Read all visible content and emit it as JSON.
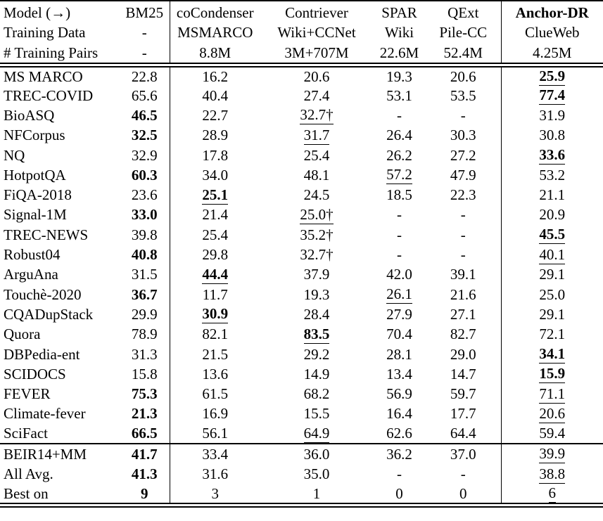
{
  "colors": {
    "text": "#000000",
    "background": "#ffffff",
    "rule": "#000000"
  },
  "table": {
    "header_rows": [
      {
        "label": "Model (→)",
        "cells": [
          {
            "v": "BM25"
          },
          {
            "v": "coCondenser"
          },
          {
            "v": "Contriever"
          },
          {
            "v": "SPAR"
          },
          {
            "v": "QExt"
          },
          {
            "v": "Anchor-DR",
            "b": true
          }
        ]
      },
      {
        "label": "Training Data",
        "cells": [
          {
            "v": "-"
          },
          {
            "v": "MSMARCO"
          },
          {
            "v": "Wiki+CCNet"
          },
          {
            "v": "Wiki"
          },
          {
            "v": "Pile-CC"
          },
          {
            "v": "ClueWeb"
          }
        ]
      },
      {
        "label": "# Training Pairs",
        "cells": [
          {
            "v": "-"
          },
          {
            "v": "8.8M"
          },
          {
            "v": "3M+707M"
          },
          {
            "v": "22.6M"
          },
          {
            "v": "52.4M"
          },
          {
            "v": "4.25M"
          }
        ]
      }
    ],
    "body_rows": [
      {
        "label": "MS MARCO",
        "cells": [
          {
            "v": "22.8"
          },
          {
            "v": "16.2"
          },
          {
            "v": "20.6"
          },
          {
            "v": "19.3"
          },
          {
            "v": "20.6"
          },
          {
            "v": "25.9",
            "b": true,
            "u": true
          }
        ]
      },
      {
        "label": "TREC-COVID",
        "cells": [
          {
            "v": "65.6"
          },
          {
            "v": "40.4"
          },
          {
            "v": "27.4"
          },
          {
            "v": "53.1"
          },
          {
            "v": "53.5"
          },
          {
            "v": "77.4",
            "b": true,
            "u": true
          }
        ]
      },
      {
        "label": "BioASQ",
        "cells": [
          {
            "v": "46.5",
            "b": true
          },
          {
            "v": "22.7"
          },
          {
            "v": "32.7†",
            "u": true
          },
          {
            "v": "-"
          },
          {
            "v": "-"
          },
          {
            "v": "31.9"
          }
        ]
      },
      {
        "label": "NFCorpus",
        "cells": [
          {
            "v": "32.5",
            "b": true
          },
          {
            "v": "28.9"
          },
          {
            "v": "31.7",
            "u": true
          },
          {
            "v": "26.4"
          },
          {
            "v": "30.3"
          },
          {
            "v": "30.8"
          }
        ]
      },
      {
        "label": "NQ",
        "cells": [
          {
            "v": "32.9"
          },
          {
            "v": "17.8"
          },
          {
            "v": "25.4"
          },
          {
            "v": "26.2"
          },
          {
            "v": "27.2"
          },
          {
            "v": "33.6",
            "b": true,
            "u": true
          }
        ]
      },
      {
        "label": "HotpotQA",
        "cells": [
          {
            "v": "60.3",
            "b": true
          },
          {
            "v": "34.0"
          },
          {
            "v": "48.1"
          },
          {
            "v": "57.2",
            "u": true
          },
          {
            "v": "47.9"
          },
          {
            "v": "53.2"
          }
        ]
      },
      {
        "label": "FiQA-2018",
        "cells": [
          {
            "v": "23.6"
          },
          {
            "v": "25.1",
            "b": true,
            "u": true
          },
          {
            "v": "24.5"
          },
          {
            "v": "18.5"
          },
          {
            "v": "22.3"
          },
          {
            "v": "21.1"
          }
        ]
      },
      {
        "label": "Signal-1M",
        "cells": [
          {
            "v": "33.0",
            "b": true
          },
          {
            "v": "21.4"
          },
          {
            "v": "25.0†",
            "u": true
          },
          {
            "v": "-"
          },
          {
            "v": "-"
          },
          {
            "v": "20.9"
          }
        ]
      },
      {
        "label": "TREC-NEWS",
        "cells": [
          {
            "v": "39.8"
          },
          {
            "v": "25.4"
          },
          {
            "v": "35.2†"
          },
          {
            "v": "-"
          },
          {
            "v": "-"
          },
          {
            "v": "45.5",
            "b": true,
            "u": true
          }
        ]
      },
      {
        "label": "Robust04",
        "cells": [
          {
            "v": "40.8",
            "b": true
          },
          {
            "v": "29.8"
          },
          {
            "v": "32.7†"
          },
          {
            "v": "-"
          },
          {
            "v": "-"
          },
          {
            "v": "40.1",
            "u": true
          }
        ]
      },
      {
        "label": "ArguAna",
        "cells": [
          {
            "v": "31.5"
          },
          {
            "v": "44.4",
            "b": true,
            "u": true
          },
          {
            "v": "37.9"
          },
          {
            "v": "42.0"
          },
          {
            "v": "39.1"
          },
          {
            "v": "29.1"
          }
        ]
      },
      {
        "label": "Touchè-2020",
        "cells": [
          {
            "v": "36.7",
            "b": true
          },
          {
            "v": "11.7"
          },
          {
            "v": "19.3"
          },
          {
            "v": "26.1",
            "u": true
          },
          {
            "v": "21.6"
          },
          {
            "v": "25.0"
          }
        ]
      },
      {
        "label": "CQADupStack",
        "cells": [
          {
            "v": "29.9"
          },
          {
            "v": "30.9",
            "b": true,
            "u": true
          },
          {
            "v": "28.4"
          },
          {
            "v": "27.9"
          },
          {
            "v": "27.1"
          },
          {
            "v": "29.1"
          }
        ]
      },
      {
        "label": "Quora",
        "cells": [
          {
            "v": "78.9"
          },
          {
            "v": "82.1"
          },
          {
            "v": "83.5",
            "b": true,
            "u": true
          },
          {
            "v": "70.4"
          },
          {
            "v": "82.7"
          },
          {
            "v": "72.1"
          }
        ]
      },
      {
        "label": "DBPedia-ent",
        "cells": [
          {
            "v": "31.3"
          },
          {
            "v": "21.5"
          },
          {
            "v": "29.2"
          },
          {
            "v": "28.1"
          },
          {
            "v": "29.0"
          },
          {
            "v": "34.1",
            "b": true,
            "u": true
          }
        ]
      },
      {
        "label": "SCIDOCS",
        "cells": [
          {
            "v": "15.8"
          },
          {
            "v": "13.6"
          },
          {
            "v": "14.9"
          },
          {
            "v": "13.4"
          },
          {
            "v": "14.7"
          },
          {
            "v": "15.9",
            "b": true,
            "u": true
          }
        ]
      },
      {
        "label": "FEVER",
        "cells": [
          {
            "v": "75.3",
            "b": true
          },
          {
            "v": "61.5"
          },
          {
            "v": "68.2"
          },
          {
            "v": "56.9"
          },
          {
            "v": "59.7"
          },
          {
            "v": "71.1",
            "u": true
          }
        ]
      },
      {
        "label": "Climate-fever",
        "cells": [
          {
            "v": "21.3",
            "b": true
          },
          {
            "v": "16.9"
          },
          {
            "v": "15.5"
          },
          {
            "v": "16.4"
          },
          {
            "v": "17.7"
          },
          {
            "v": "20.6",
            "u": true
          }
        ]
      },
      {
        "label": "SciFact",
        "cells": [
          {
            "v": "66.5",
            "b": true
          },
          {
            "v": "56.1"
          },
          {
            "v": "64.9",
            "u": true
          },
          {
            "v": "62.6"
          },
          {
            "v": "64.4"
          },
          {
            "v": "59.4"
          }
        ]
      }
    ],
    "summary_rows": [
      {
        "label": "BEIR14+MM",
        "cells": [
          {
            "v": "41.7",
            "b": true
          },
          {
            "v": "33.4"
          },
          {
            "v": "36.0"
          },
          {
            "v": "36.2"
          },
          {
            "v": "37.0"
          },
          {
            "v": "39.9",
            "u": true
          }
        ]
      },
      {
        "label": "All Avg.",
        "cells": [
          {
            "v": "41.3",
            "b": true
          },
          {
            "v": "31.6"
          },
          {
            "v": "35.0"
          },
          {
            "v": "-"
          },
          {
            "v": "-"
          },
          {
            "v": "38.8",
            "u": true
          }
        ]
      },
      {
        "label": "Best on",
        "cells": [
          {
            "v": "9",
            "b": true
          },
          {
            "v": "3"
          },
          {
            "v": "1"
          },
          {
            "v": "0"
          },
          {
            "v": "0"
          },
          {
            "v": "6",
            "u": true
          }
        ]
      }
    ]
  }
}
